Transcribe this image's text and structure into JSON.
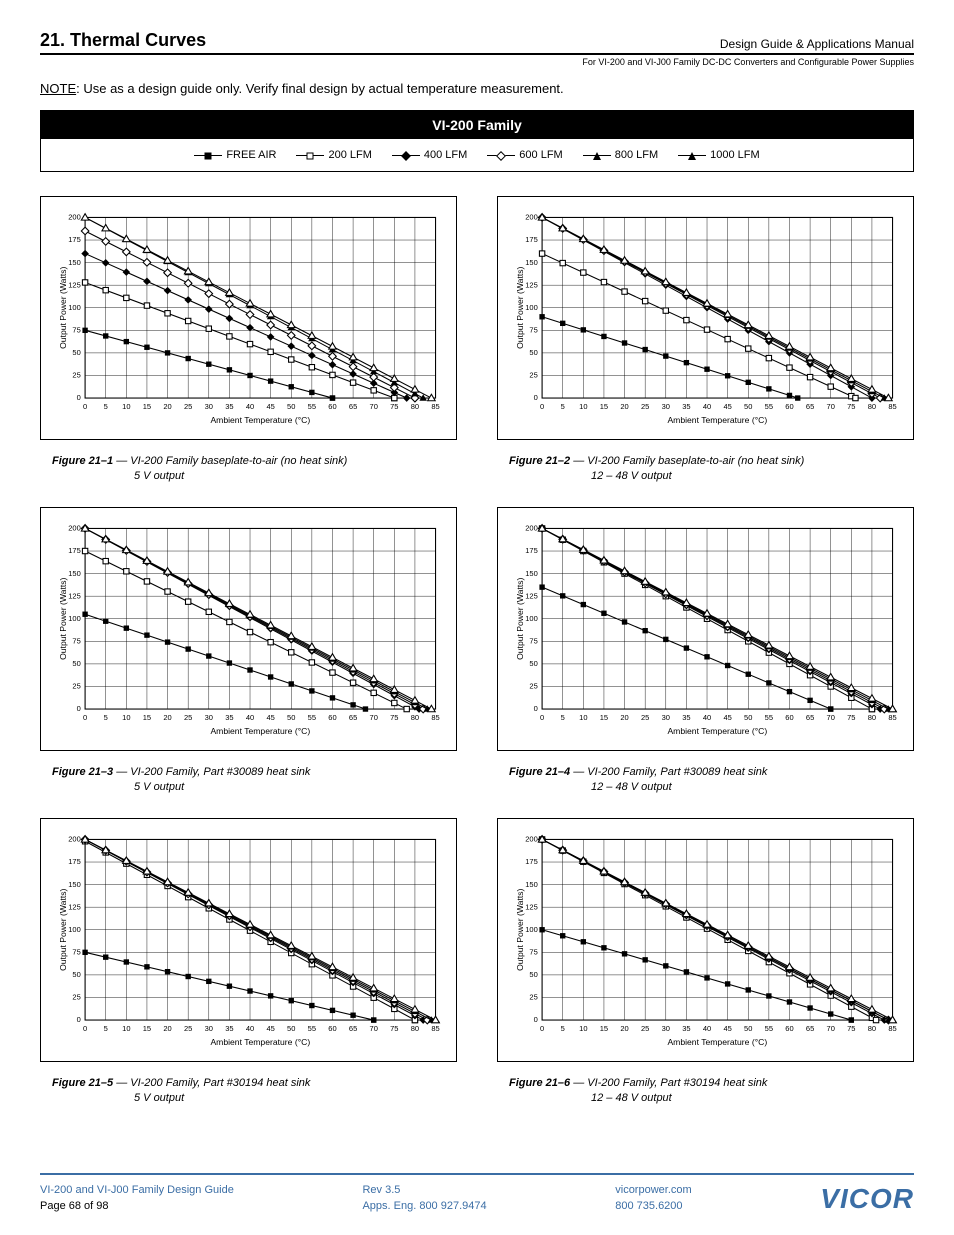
{
  "header": {
    "section_num": "21.",
    "section_title": "Thermal Curves",
    "right": "Design Guide & Applications Manual",
    "sub": "For VI-200 and VI-J00 Family DC-DC Converters and Configurable Power Supplies"
  },
  "note": {
    "label": "NOTE",
    "text": ": Use as a design guide only. Verify final design by actual temperature measurement."
  },
  "legend": {
    "title": "VI-200 Family",
    "items": [
      {
        "label": "FREE AIR",
        "marker": "sq-f"
      },
      {
        "label": "200 LFM",
        "marker": "sq-o"
      },
      {
        "label": "400 LFM",
        "marker": "dm-f"
      },
      {
        "label": "600 LFM",
        "marker": "dm-o"
      },
      {
        "label": "800 LFM",
        "marker": "tr-f"
      },
      {
        "label": "1000 LFM",
        "marker": "tr-o"
      }
    ]
  },
  "chart_cfg": {
    "xlabel": "Ambient Temperature (°C)",
    "ylabel": "Output Power (Watts)",
    "xlim": [
      0,
      85
    ],
    "xtick_step": 5,
    "ylim": [
      0,
      200
    ],
    "ytick_step": 25,
    "label_fontsize": 8,
    "tick_fontsize": 7,
    "grid_color": "#000000",
    "background_color": "#ffffff",
    "line_color": "#000000",
    "marker_size": 5
  },
  "series_markers": [
    "sq-f",
    "sq-o",
    "dm-f",
    "dm-o",
    "tr-f",
    "tr-o"
  ],
  "charts": [
    {
      "id": "fig-21-1",
      "caption_fig": "Figure 21–1",
      "caption_l1": " — VI-200 Family baseplate-to-air (no heat sink)",
      "caption_l2": "5 V output",
      "series": [
        {
          "y0": 75,
          "x_end": 60
        },
        {
          "y0": 128,
          "x_end": 75
        },
        {
          "y0": 160,
          "x_end": 78
        },
        {
          "y0": 185,
          "x_end": 80
        },
        {
          "y0": 200,
          "x_end": 82
        },
        {
          "y0": 200,
          "x_end": 84
        }
      ]
    },
    {
      "id": "fig-21-2",
      "caption_fig": "Figure 21–2",
      "caption_l1": " — VI-200 Family baseplate-to-air (no heat sink)",
      "caption_l2": "12 – 48 V output",
      "series": [
        {
          "y0": 90,
          "x_end": 62
        },
        {
          "y0": 160,
          "x_end": 76
        },
        {
          "y0": 200,
          "x_end": 80
        },
        {
          "y0": 200,
          "x_end": 82
        },
        {
          "y0": 200,
          "x_end": 83
        },
        {
          "y0": 200,
          "x_end": 84
        }
      ]
    },
    {
      "id": "fig-21-3",
      "caption_fig": "Figure 21–3",
      "caption_l1": " — VI-200 Family, Part #30089 heat sink",
      "caption_l2": "5 V output",
      "series": [
        {
          "y0": 105,
          "x_end": 68
        },
        {
          "y0": 175,
          "x_end": 78
        },
        {
          "y0": 200,
          "x_end": 81
        },
        {
          "y0": 200,
          "x_end": 82
        },
        {
          "y0": 200,
          "x_end": 83
        },
        {
          "y0": 200,
          "x_end": 84
        }
      ]
    },
    {
      "id": "fig-21-4",
      "caption_fig": "Figure 21–4",
      "caption_l1": " — VI-200 Family, Part #30089 heat sink",
      "caption_l2": "12 – 48 V output",
      "series": [
        {
          "y0": 135,
          "x_end": 70
        },
        {
          "y0": 200,
          "x_end": 80
        },
        {
          "y0": 200,
          "x_end": 82
        },
        {
          "y0": 200,
          "x_end": 83
        },
        {
          "y0": 200,
          "x_end": 84
        },
        {
          "y0": 200,
          "x_end": 85
        }
      ]
    },
    {
      "id": "fig-21-5",
      "caption_fig": "Figure 21–5",
      "caption_l1": " — VI-200 Family, Part #30194 heat sink",
      "caption_l2": "5 V output",
      "series": [
        {
          "y0": 75,
          "x_end": 70
        },
        {
          "y0": 198,
          "x_end": 80
        },
        {
          "y0": 200,
          "x_end": 82
        },
        {
          "y0": 200,
          "x_end": 83
        },
        {
          "y0": 200,
          "x_end": 84
        },
        {
          "y0": 200,
          "x_end": 85
        }
      ]
    },
    {
      "id": "fig-21-6",
      "caption_fig": "Figure 21–6",
      "caption_l1": " — VI-200 Family, Part #30194 heat sink",
      "caption_l2": "12 – 48 V output",
      "series": [
        {
          "y0": 100,
          "x_end": 75
        },
        {
          "y0": 200,
          "x_end": 81
        },
        {
          "y0": 200,
          "x_end": 83
        },
        {
          "y0": 200,
          "x_end": 84
        },
        {
          "y0": 200,
          "x_end": 84
        },
        {
          "y0": 200,
          "x_end": 85
        }
      ]
    }
  ],
  "footer": {
    "left_l1": "VI-200 and VI-J00 Family Design Guide",
    "left_l2": "Page 68 of 98",
    "mid_l1": "Rev 3.5",
    "mid_l2": "Apps. Eng. 800 927.9474",
    "right_l1": "vicorpower.com",
    "right_l2": "800 735.6200",
    "logo": "VICOR"
  }
}
